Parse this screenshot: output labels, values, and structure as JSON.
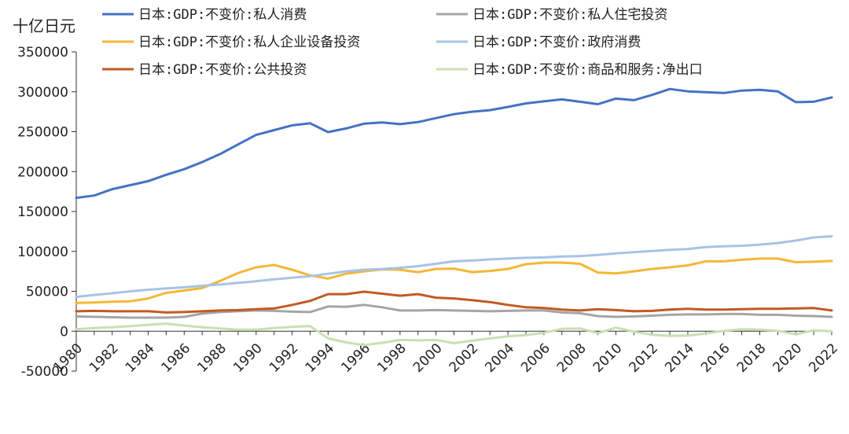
{
  "chart_data": {
    "type": "line",
    "unit_label": "十亿日元",
    "ylim": [
      -50000,
      350000
    ],
    "y_ticks": [
      -50000,
      0,
      50000,
      100000,
      150000,
      200000,
      250000,
      300000,
      350000
    ],
    "x_ticks": [
      1980,
      1982,
      1984,
      1986,
      1988,
      1990,
      1992,
      1994,
      1996,
      1998,
      2000,
      2002,
      2004,
      2006,
      2008,
      2010,
      2012,
      2014,
      2016,
      2018,
      2020,
      2022
    ],
    "legend_placement": "top",
    "x": [
      1980,
      1981,
      1982,
      1983,
      1984,
      1985,
      1986,
      1987,
      1988,
      1989,
      1990,
      1991,
      1992,
      1993,
      1994,
      1995,
      1996,
      1997,
      1998,
      1999,
      2000,
      2001,
      2002,
      2003,
      2004,
      2005,
      2006,
      2007,
      2008,
      2009,
      2010,
      2011,
      2012,
      2013,
      2014,
      2015,
      2016,
      2017,
      2018,
      2019,
      2020,
      2021,
      2022
    ],
    "series": [
      {
        "name": "日本:GDP:不变价:私人消费",
        "color": "#4472c4",
        "values": [
          167000,
          170000,
          178000,
          183000,
          188000,
          196000,
          203000,
          212000,
          222000,
          234000,
          246000,
          252000,
          258000,
          260500,
          249500,
          254000,
          260000,
          261500,
          259500,
          262000,
          267000,
          272000,
          275000,
          277000,
          281000,
          285500,
          288000,
          290500,
          287500,
          284500,
          291500,
          289500,
          296000,
          303500,
          300500,
          299500,
          298500,
          301500,
          302500,
          300500,
          287000,
          287500,
          293000
        ]
      },
      {
        "name": "日本:GDP:不变价:私人住宅投资",
        "color": "#a5a5a5",
        "values": [
          18500,
          18000,
          17500,
          17000,
          17000,
          17000,
          18000,
          22000,
          24000,
          25000,
          26000,
          25500,
          24500,
          24000,
          31000,
          30500,
          33000,
          30000,
          26000,
          26000,
          26500,
          26000,
          25500,
          25000,
          25500,
          26000,
          26000,
          23500,
          22500,
          19000,
          18000,
          18500,
          19500,
          20500,
          21000,
          21000,
          21500,
          21500,
          20500,
          20500,
          19500,
          19000,
          18000
        ]
      },
      {
        "name": "日本:GDP:不变价:私人企业设备投资",
        "color": "#f4b735",
        "values": [
          35500,
          36000,
          37000,
          37500,
          41000,
          48000,
          51000,
          54000,
          63000,
          73000,
          80000,
          83000,
          77000,
          70000,
          66000,
          72000,
          75000,
          77500,
          77000,
          74000,
          78000,
          78500,
          74000,
          75500,
          78000,
          84000,
          86000,
          86000,
          84500,
          73500,
          72500,
          75000,
          78000,
          80000,
          82500,
          87500,
          87500,
          89500,
          91000,
          91000,
          86500,
          87000,
          88000
        ]
      },
      {
        "name": "日本:GDP:不变价:政府消费",
        "color": "#a7c3e6",
        "values": [
          43000,
          45500,
          47500,
          50000,
          52000,
          53500,
          55000,
          57000,
          58500,
          60500,
          62500,
          65000,
          67000,
          69000,
          72000,
          75000,
          77000,
          78000,
          79500,
          81500,
          84500,
          87500,
          88500,
          90000,
          91000,
          92000,
          92500,
          93500,
          94000,
          95500,
          97500,
          99000,
          100500,
          102000,
          103000,
          105500,
          106500,
          107000,
          108500,
          110500,
          113500,
          117500,
          119000
        ]
      },
      {
        "name": "日本:GDP:不变价:公共投资",
        "color": "#c25a23",
        "values": [
          25000,
          25500,
          25000,
          25000,
          25000,
          23500,
          24000,
          25000,
          26000,
          26500,
          27500,
          28500,
          33000,
          38000,
          46500,
          46500,
          49500,
          47000,
          44500,
          46500,
          42000,
          41000,
          39000,
          36500,
          33000,
          30000,
          29000,
          27000,
          26000,
          27500,
          26500,
          25000,
          25500,
          27000,
          28000,
          27000,
          27000,
          27500,
          28000,
          28000,
          28500,
          29000,
          26000
        ]
      },
      {
        "name": "日本:GDP:不变价:商品和服务:净出口",
        "color": "#c9dfb3",
        "values": [
          2500,
          4000,
          5000,
          6500,
          8000,
          9500,
          7000,
          5000,
          3500,
          2000,
          2000,
          4000,
          5500,
          6500,
          -9000,
          -14000,
          -17500,
          -14500,
          -11000,
          -11500,
          -11000,
          -15000,
          -12000,
          -9000,
          -6500,
          -5000,
          -2000,
          3000,
          3500,
          -2500,
          4500,
          -500,
          -4500,
          -6000,
          -5500,
          -3000,
          500,
          2500,
          2000,
          500,
          -4000,
          1000,
          0
        ]
      }
    ]
  }
}
